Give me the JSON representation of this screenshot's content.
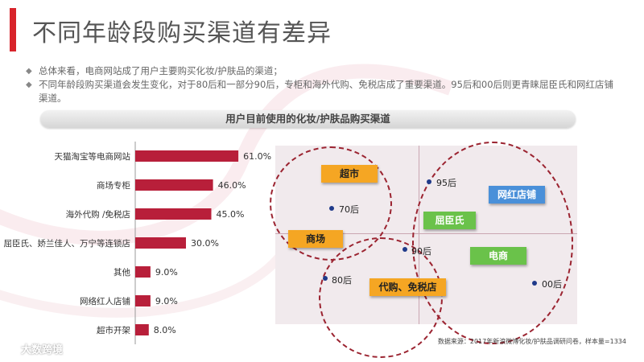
{
  "title": "不同年龄段购买渠道有差异",
  "bullets": [
    "总体来看，电商网站成了用户主要购买化妆/护肤品的渠道；",
    "不同年龄段购买渠道会发生变化，对于80后和一部分90后，专柜和海外代购、免税店成了重要渠道。95后和00后则更青睐屈臣氏和网红店铺渠道。"
  ],
  "colors": {
    "accent": "#d8242b",
    "bar": "#b81f3a",
    "circle": "#9b2330"
  },
  "chart_data": [
    {
      "type": "bar",
      "orientation": "horizontal",
      "title": "用户目前使用的化妆/护肤品购买渠道",
      "categories": [
        "天猫淘宝等电商网站",
        "商场专柜",
        "海外代购 /免税店",
        "屈臣氏、娇兰佳人、万宁等连锁店",
        "其他",
        "网络红人店铺",
        "超市开架"
      ],
      "values": [
        61.0,
        46.0,
        45.0,
        30.0,
        9.0,
        9.0,
        8.0
      ],
      "value_labels": [
        "61.0%",
        "46.0%",
        "45.0%",
        "30.0%",
        "9.0%",
        "9.0%",
        "8.0%"
      ],
      "xlim": [
        0,
        100
      ]
    }
  ],
  "positioning_map": {
    "channels": {
      "supermarket": "超市",
      "mall": "商场",
      "watsons": "屈臣氏",
      "influencer": "网红店铺",
      "ecommerce": "电商",
      "daigou": "代购、免税店"
    },
    "age_groups": {
      "g70": "70后",
      "g80": "80后",
      "g90": "90后",
      "g95": "95后",
      "g00": "00后"
    }
  },
  "source": "数据来源：2017年新浪微博化妆/护肤品调研问卷，样本量=1334",
  "logo_text": "大数跨境"
}
